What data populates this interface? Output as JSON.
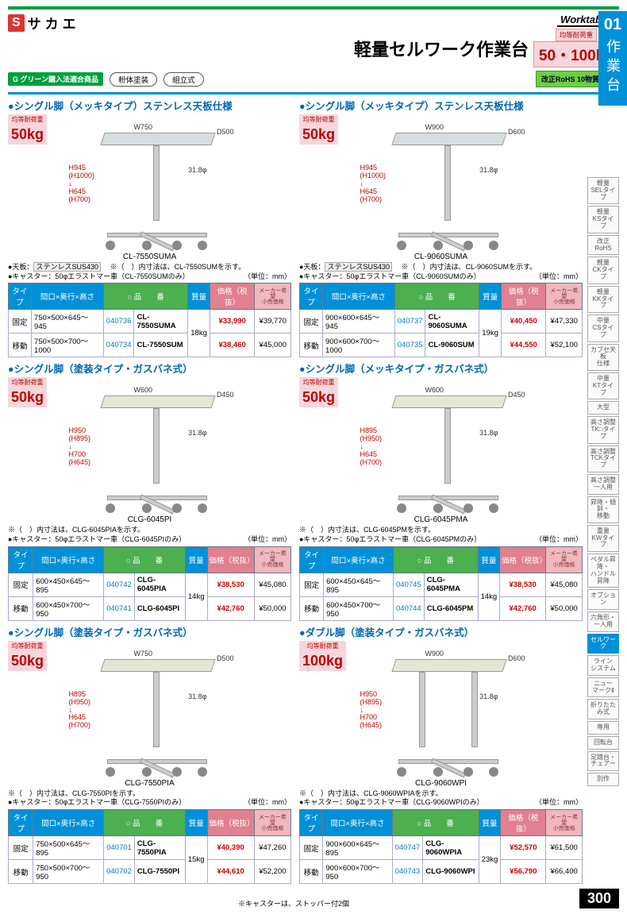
{
  "header": {
    "brand_s": "S",
    "brand_name": "サカエ",
    "worktables": "Worktables",
    "main_title": "軽量セルワーク作業台",
    "cap_label": "均等耐荷重",
    "cap_value": "50・100kg",
    "section_num": "01",
    "section_label": "作業台",
    "g_badge": "G グリーン購入法適合商品",
    "pill1": "粉体塗装",
    "pill2": "組立式",
    "rohs": "改正RoHS 10物質対応"
  },
  "side_index": [
    "軽量\nSELタイプ",
    "軽量\nKSタイプ",
    "改正RoHS",
    "軽量\nCKタイプ",
    "軽量\nKKタイプ",
    "中量\nCSタイプ",
    "カブセ天板\n仕様",
    "中量\nKTタイプ",
    "大型",
    "高さ調整\nTK□タイプ",
    "高さ調整\nTCKタイプ",
    "高さ調整\n一人用",
    "昇降・傾斜・\n移動",
    "重量\nKWタイプ",
    "ペダル昇降・\nハンドル昇降",
    "オプション",
    "六角形・\n一人用",
    "セルワーク",
    "ライン\nシステム",
    "ニュー\nマークⅡ",
    "折りたたみ式",
    "専用",
    "回転台",
    "足踏台・\nチェアー",
    "別作"
  ],
  "active_index": 17,
  "load_label": "均等耐荷重",
  "unit_note": "（単位：mm）",
  "table_headers": {
    "type": "タイプ",
    "dim": "間口×奥行×高さ",
    "code": "品　　番",
    "mass": "質量",
    "price": "価格（税抜）",
    "maker": "メーカー希望\n小売価格"
  },
  "products": [
    {
      "title": "シングル脚（メッキタイプ）ステンレス天板仕様",
      "load": "50kg",
      "steel": true,
      "double": false,
      "wlabel": "W750",
      "dlabel": "D500",
      "hlabel": "H945\n(H1000)\n↓\nH645\n(H700)",
      "dia": "31.8φ",
      "model": "CL-7550SUMA",
      "note_top": "●天板：",
      "sus": "ステンレスSUS430",
      "note_star": "※（　）内寸法は、CL-7550SUMを示す。",
      "note_caster": "●キャスター：50φエラストマー車（CL-7550SUMのみ）",
      "rows": [
        {
          "type": "固定",
          "dim": "750×500×645〜 945",
          "ord": "040736",
          "code": "CL-7550SUMA",
          "mass": "18kg",
          "price": "¥33,990",
          "list": "¥39,770"
        },
        {
          "type": "移動",
          "dim": "750×500×700〜1000",
          "ord": "040734",
          "code": "CL-7550SUM",
          "mass": "",
          "price": "¥38,460",
          "list": "¥45,000"
        }
      ]
    },
    {
      "title": "シングル脚（メッキタイプ）ステンレス天板仕様",
      "load": "50kg",
      "steel": true,
      "double": false,
      "wlabel": "W900",
      "dlabel": "D600",
      "hlabel": "H945\n(H1000)\n↓\nH645\n(H700)",
      "dia": "31.8φ",
      "model": "CL-9060SUMA",
      "note_top": "●天板：",
      "sus": "ステンレスSUS430",
      "note_star": "※（　）内寸法は、CL-9060SUMを示す。",
      "note_caster": "●キャスター：50φエラストマー車（CL-9060SUMのみ）",
      "rows": [
        {
          "type": "固定",
          "dim": "900×600×645〜 945",
          "ord": "040737",
          "code": "CL-9060SUMA",
          "mass": "19kg",
          "price": "¥40,450",
          "list": "¥47,330"
        },
        {
          "type": "移動",
          "dim": "900×600×700〜1000",
          "ord": "040735",
          "code": "CL-9060SUM",
          "mass": "",
          "price": "¥44,550",
          "list": "¥52,100"
        }
      ]
    },
    {
      "title": "シングル脚（塗装タイプ・ガスバネ式）",
      "load": "50kg",
      "steel": false,
      "double": false,
      "wlabel": "W600",
      "dlabel": "D450",
      "hlabel": "H950\n(H895)\n↓\nH700\n(H645)",
      "dia": "31.8φ",
      "model": "CLG-6045PI",
      "note_top": "",
      "sus": "",
      "note_star": "※（　）内寸法は、CLG-6045PIAを示す。",
      "note_caster": "●キャスター：50φエラストマー車（CLG-6045PIのみ）",
      "rows": [
        {
          "type": "固定",
          "dim": "600×450×645〜895",
          "ord": "040742",
          "code": "CLG-6045PIA",
          "mass": "14kg",
          "price": "¥38,530",
          "list": "¥45,080"
        },
        {
          "type": "移動",
          "dim": "600×450×700〜950",
          "ord": "040741",
          "code": "CLG-6045PI",
          "mass": "",
          "price": "¥42,760",
          "list": "¥50,000"
        }
      ]
    },
    {
      "title": "シングル脚（メッキタイプ・ガスバネ式）",
      "load": "50kg",
      "steel": false,
      "double": false,
      "wlabel": "W600",
      "dlabel": "D450",
      "hlabel": "H895\n(H950)\n↓\nH645\n(H700)",
      "dia": "31.8φ",
      "model": "CLG-6045PMA",
      "note_top": "",
      "sus": "",
      "note_star": "※（　）内寸法は、CLG-6045PMを示す。",
      "note_caster": "●キャスター：50φエラストマー車（CLG-6045PMのみ）",
      "rows": [
        {
          "type": "固定",
          "dim": "600×450×645〜895",
          "ord": "040745",
          "code": "CLG-6045PMA",
          "mass": "14kg",
          "price": "¥38,530",
          "list": "¥45,080"
        },
        {
          "type": "移動",
          "dim": "600×450×700〜950",
          "ord": "040744",
          "code": "CLG-6045PM",
          "mass": "",
          "price": "¥42,760",
          "list": "¥50,000"
        }
      ]
    },
    {
      "title": "シングル脚（塗装タイプ・ガスバネ式）",
      "load": "50kg",
      "steel": false,
      "double": false,
      "wlabel": "W750",
      "dlabel": "D500",
      "hlabel": "H895\n(H950)\n↓\nH645\n(H700)",
      "dia": "31.8φ",
      "model": "CLG-7550PIA",
      "note_top": "",
      "sus": "",
      "note_star": "※（　）内寸法は、CLG-7550PIを示す。",
      "note_caster": "●キャスター：50φエラストマー車（CLG-7550PIのみ）",
      "rows": [
        {
          "type": "固定",
          "dim": "750×500×645〜895",
          "ord": "040701",
          "code": "CLG-7550PIA",
          "mass": "15kg",
          "price": "¥40,390",
          "list": "¥47,260"
        },
        {
          "type": "移動",
          "dim": "750×500×700〜950",
          "ord": "040702",
          "code": "CLG-7550PI",
          "mass": "",
          "price": "¥44,610",
          "list": "¥52,200"
        }
      ]
    },
    {
      "title": "ダブル脚（塗装タイプ・ガスバネ式）",
      "load": "100kg",
      "steel": false,
      "double": true,
      "wlabel": "W900",
      "dlabel": "D600",
      "hlabel": "H950\n(H895)\n↓\nH700\n(H645)",
      "dia": "31.8φ",
      "model": "CLG-9060WPI",
      "note_top": "",
      "sus": "",
      "note_star": "※（　）内寸法は、CLG-9060WPIAを示す。",
      "note_caster": "●キャスター：50φエラストマー車（CLG-9060WPIのみ）",
      "rows": [
        {
          "type": "固定",
          "dim": "900×600×645〜895",
          "ord": "040747",
          "code": "CLG-9060WPIA",
          "mass": "23kg",
          "price": "¥52,570",
          "list": "¥61,500"
        },
        {
          "type": "移動",
          "dim": "900×600×700〜950",
          "ord": "040743",
          "code": "CLG-9060WPI",
          "mass": "",
          "price": "¥56,790",
          "list": "¥66,400"
        }
      ]
    }
  ],
  "footer": {
    "note": "※キャスターは、ストッパー付2個",
    "page": "300"
  }
}
